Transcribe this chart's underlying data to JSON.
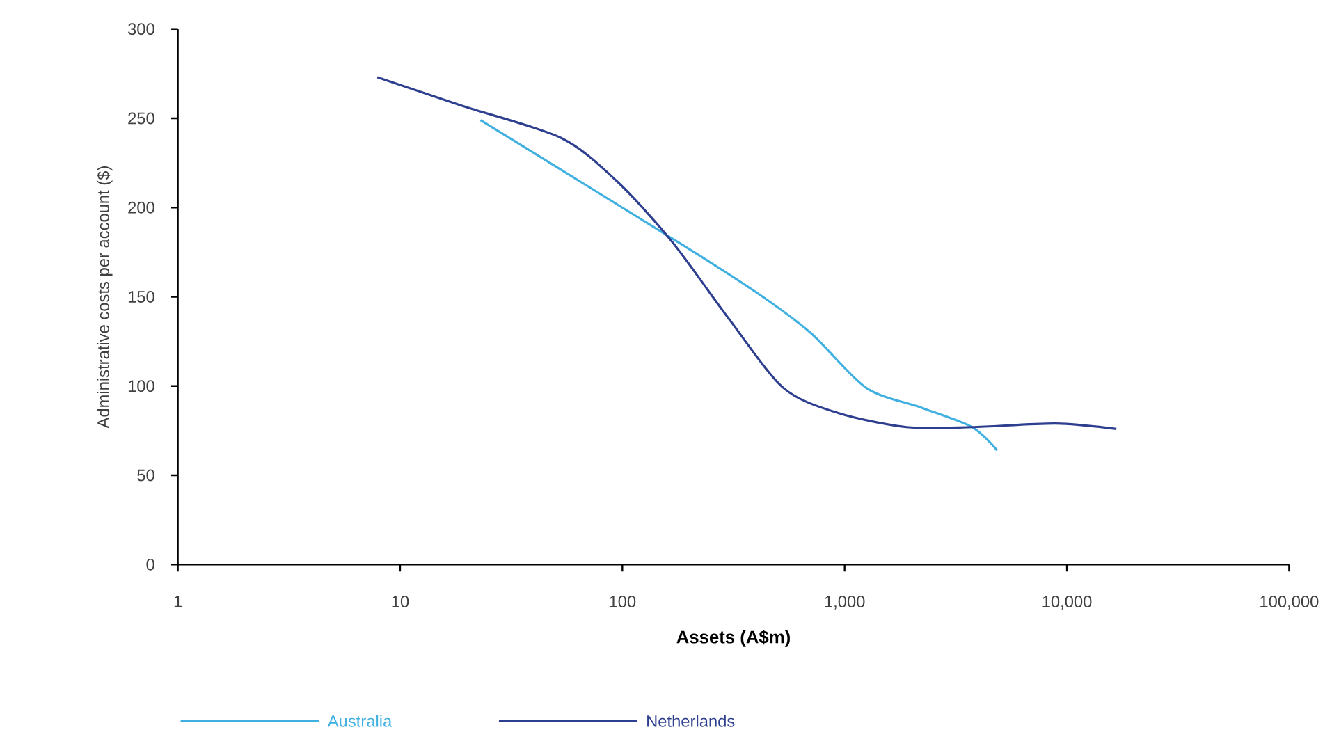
{
  "chart_data": {
    "type": "line",
    "xlabel": "Assets (A$m)",
    "ylabel": "Administrative costs per account ($)",
    "log": "x",
    "xlim": [
      1,
      100000
    ],
    "xticks": [
      1,
      10,
      100,
      {
        "value": 1000,
        "label": "1,000"
      },
      {
        "value": 10000,
        "label": "10,000"
      },
      {
        "value": 100000,
        "label": "100,000"
      }
    ],
    "ylim": [
      0,
      300
    ],
    "yticks": [
      0,
      50,
      100,
      150,
      200,
      250,
      300
    ],
    "grid": false,
    "legend": "bottom",
    "marker": "none",
    "line_style": "solid",
    "series": [
      {
        "name": "Australia",
        "color": "#3fb0e0",
        "x": [
          23,
          187,
          395,
          700,
          1250,
          2200,
          3750,
          4850
        ],
        "values": [
          249,
          179,
          153,
          130,
          99,
          88,
          77,
          64
        ]
      },
      {
        "name": "Netherlands",
        "color": "#2e3f8f",
        "x": [
          7.9,
          19,
          53,
          94,
          167,
          300,
          530,
          930,
          1900,
          3750,
          8900,
          16700
        ],
        "values": [
          273,
          257,
          239,
          215,
          181,
          138,
          99,
          85,
          77,
          77,
          79,
          76
        ]
      }
    ]
  }
}
